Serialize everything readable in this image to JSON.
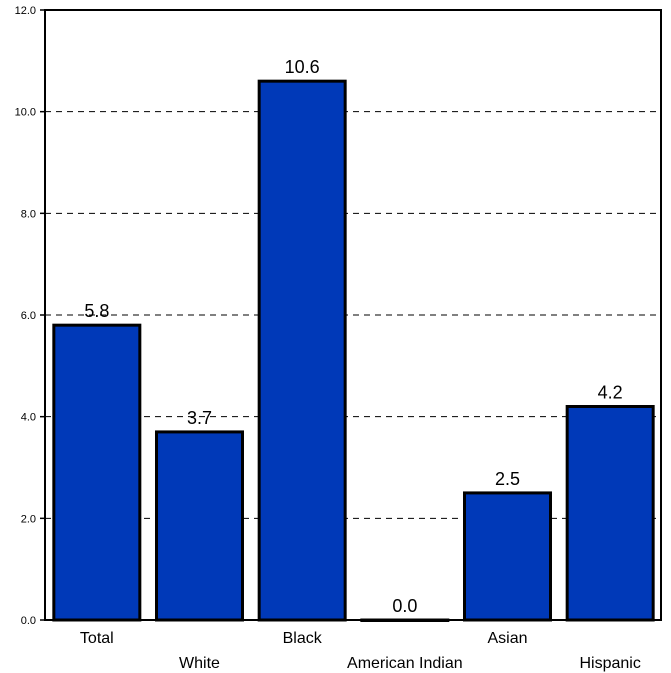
{
  "chart_data": {
    "type": "bar",
    "categories": [
      "Total",
      "White",
      "Black",
      "American Indian",
      "Asian",
      "Hispanic"
    ],
    "values": [
      5.8,
      3.7,
      10.6,
      0.0,
      2.5,
      4.2
    ],
    "data_labels": [
      "5.8",
      "3.7",
      "10.6",
      "0.0",
      "2.5",
      "4.2"
    ],
    "y_ticks": [
      0.0,
      2.0,
      4.0,
      6.0,
      8.0,
      10.0,
      12.0
    ],
    "y_tick_labels": [
      "0.0",
      "2.0",
      "4.0",
      "6.0",
      "8.0",
      "10.0",
      "12.0"
    ],
    "ylim": [
      0,
      12
    ],
    "grid": true,
    "colors": {
      "bar": "#0039b8",
      "bar_stroke": "#000000",
      "grid": "#000000"
    }
  }
}
